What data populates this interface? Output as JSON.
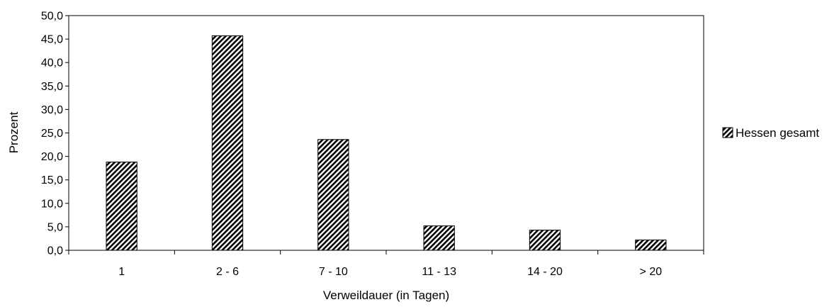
{
  "chart_data": {
    "type": "bar",
    "categories": [
      "1",
      "2 - 6",
      "7 - 10",
      "11 - 13",
      "14 - 20",
      "> 20"
    ],
    "series": [
      {
        "name": "Hessen gesamt",
        "values": [
          18.8,
          45.7,
          23.6,
          5.2,
          4.3,
          2.2
        ],
        "pattern": "diagonal-hatch"
      }
    ],
    "xlabel": "Verweildauer (in Tagen)",
    "ylabel": "Prozent",
    "ylim": [
      0,
      50
    ],
    "yticks": [
      "0,0",
      "5,0",
      "10,0",
      "15,0",
      "20,0",
      "25,0",
      "30,0",
      "35,0",
      "40,0",
      "45,0",
      "50,0"
    ],
    "grid": false,
    "legend": "right",
    "colors": {
      "bar_fill": "#ffffff",
      "bar_hatch": "#000000",
      "axis": "#000000"
    }
  }
}
